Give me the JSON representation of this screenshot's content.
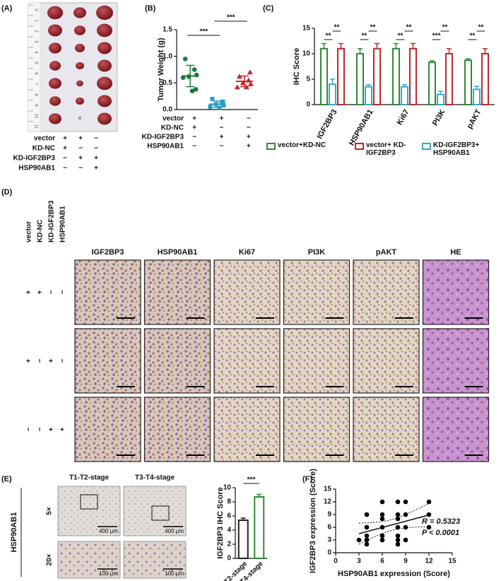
{
  "panel_labels": [
    "(A)",
    "(B)",
    "(C)",
    "(D)",
    "(E)",
    "(F)"
  ],
  "conditions": {
    "labels": [
      "vector",
      "KD-NC",
      "KD-IGF2BP3",
      "HSP90AB1"
    ],
    "groups": [
      [
        "+",
        "+",
        "−",
        "−"
      ],
      [
        "+",
        "−",
        "+",
        "−"
      ],
      [
        "−",
        "−",
        "+",
        "+"
      ]
    ]
  },
  "panel_a": {
    "ruler_labels": [
      "0",
      "1",
      "2",
      "3",
      "4",
      "5",
      "6",
      "7",
      "8",
      "9",
      "10",
      "11"
    ],
    "absent_mark": "×"
  },
  "panel_d": {
    "stains": [
      "IGF2BP3",
      "HSP90AB1",
      "Ki67",
      "PI3K",
      "pAKT",
      "HE"
    ]
  },
  "panel_e": {
    "stages": [
      "T1-T2-stage",
      "T3-T4-stage"
    ],
    "magnifications": [
      "5×",
      "20×"
    ],
    "marker": "HSP90AB1",
    "scale_bars": [
      "400 μm",
      "100 μm"
    ]
  },
  "chart_data": [
    {
      "type": "dot",
      "ylabel": "Tumor Weight (g)",
      "ylim": [
        0,
        1.5
      ],
      "yticks": [
        {
          "value": 0,
          "label": "0.0"
        },
        0.5,
        {
          "value": 1,
          "label": "1.0"
        },
        1.5
      ],
      "series": [
        {
          "color": "#1a7a3a",
          "marker": "circle",
          "values": [
            0.95,
            0.75,
            0.62,
            0.65,
            0.6,
            0.35,
            0.38
          ],
          "mean": 0.63,
          "error": 0.2
        },
        {
          "color": "#2a9cc4",
          "marker": "square",
          "values": [
            0.2,
            0.12,
            0.1,
            0.08,
            0.05,
            0.03,
            0.15
          ],
          "mean": 0.1,
          "error": 0.06
        },
        {
          "color": "#c0282d",
          "marker": "triangle",
          "values": [
            0.62,
            0.55,
            0.5,
            0.48,
            0.42,
            0.42,
            0.7
          ],
          "mean": 0.53,
          "error": 0.1
        }
      ],
      "significance": [
        "***",
        "***"
      ]
    },
    {
      "type": "bar",
      "ylabel": "IHC Score",
      "categories": [
        "IGF2BP3",
        "HSP90AB1",
        "Ki67",
        "PI3K",
        "pAKT"
      ],
      "ylim": [
        0,
        15
      ],
      "yticks": [
        0,
        5,
        10,
        15
      ],
      "series": [
        {
          "name": "vector+KD-NC",
          "color": "#2e8b3a",
          "values": [
            11,
            10,
            11,
            8.3,
            8.7
          ],
          "errors": [
            1,
            1,
            1,
            0.3,
            0.3
          ]
        },
        {
          "name": "vector+ KD-IGF2BP3",
          "color": "#c0282d",
          "values": [
            11,
            11,
            11,
            10,
            10
          ],
          "errors": [
            1,
            1,
            1,
            1,
            1
          ]
        },
        {
          "name": "KD-IGF2BP3+ HSP90AB1",
          "color": "#3aa7c9",
          "values": [
            4,
            3.5,
            3.5,
            2,
            3
          ],
          "errors": [
            1,
            0.4,
            0.4,
            0.6,
            0.6
          ]
        }
      ],
      "significance": [
        [
          "**",
          "**"
        ],
        [
          "**",
          "**"
        ],
        [
          "**",
          "**"
        ],
        [
          "***",
          "**"
        ],
        [
          "**",
          "**"
        ]
      ]
    },
    {
      "type": "bar",
      "ylabel": "IGF2BP3 IHC Score",
      "categories": [
        "T1-T2-stage",
        "T3-T4-stage"
      ],
      "values": [
        5.4,
        8.7
      ],
      "errors": [
        0.3,
        0.35
      ],
      "colors": [
        "#222222",
        "#2e8b3a"
      ],
      "ylim": [
        0,
        10
      ],
      "yticks": [
        0,
        2,
        4,
        6,
        8,
        10
      ],
      "significance": "***"
    },
    {
      "type": "scatter",
      "xlabel": "HSP90AB1 expression (Score)",
      "ylabel": "IGF2BP3 expression (Score)",
      "x": [
        3,
        4,
        4,
        4,
        4,
        4,
        6,
        6,
        6,
        6,
        6,
        6,
        8,
        8,
        8,
        8,
        8,
        8,
        8,
        9,
        9,
        9,
        9,
        12,
        12,
        12
      ],
      "values": [
        3,
        2,
        3,
        4,
        6,
        9,
        3,
        4,
        6,
        8,
        9,
        12,
        2,
        3,
        4,
        6,
        8,
        9,
        12,
        3,
        6,
        9,
        12,
        6,
        9,
        12
      ],
      "xlim": [
        0,
        15
      ],
      "xticks": [
        0,
        3,
        6,
        9,
        12,
        15
      ],
      "ylim": [
        0,
        15
      ],
      "yticks": [
        0,
        3,
        6,
        9,
        12,
        15
      ],
      "color": "#000000",
      "annotations": [
        "R = 0.5323",
        "P < 0.0001"
      ]
    }
  ]
}
